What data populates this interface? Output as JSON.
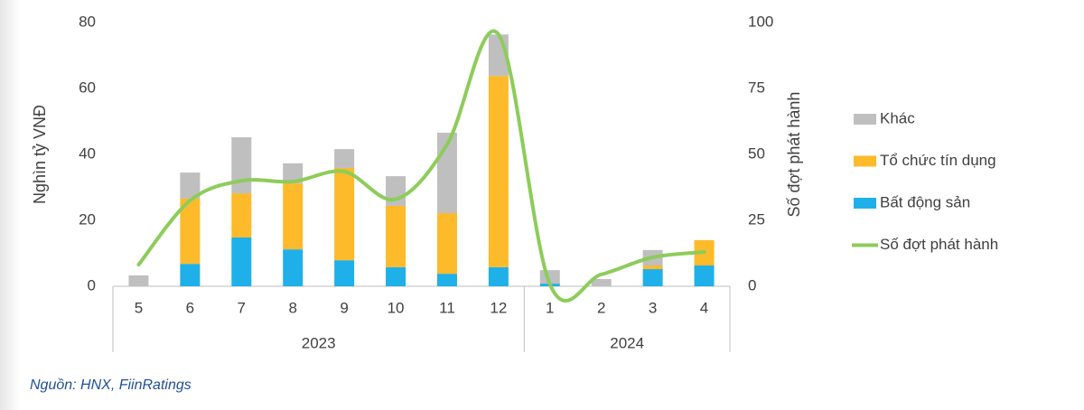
{
  "chart_data": {
    "type": "bar-line",
    "groups": [
      {
        "name": "2023",
        "categories": [
          "5",
          "6",
          "7",
          "8",
          "9",
          "10",
          "11",
          "12"
        ]
      },
      {
        "name": "2024",
        "categories": [
          "1",
          "2",
          "3",
          "4"
        ]
      }
    ],
    "series": [
      {
        "name": "Bất động sản",
        "type": "bar",
        "color": "#1fb0ea",
        "values": [
          0,
          6.8,
          14.8,
          11.2,
          7.9,
          5.8,
          3.8,
          5.8,
          0.8,
          0,
          5.2,
          6.3
        ]
      },
      {
        "name": "Tổ chức tín dụng",
        "type": "bar",
        "color": "#fdba2a",
        "values": [
          0,
          19.8,
          13.4,
          20,
          28,
          18.6,
          18.4,
          58,
          0,
          0,
          1.1,
          7.7
        ]
      },
      {
        "name": "Khác",
        "type": "bar",
        "color": "#bfbfbf",
        "values": [
          3.3,
          7.9,
          17,
          6.1,
          5.7,
          9,
          24.4,
          12.6,
          4.1,
          2.2,
          4.7,
          0
        ]
      },
      {
        "name": "Số đợt phát hành",
        "type": "line",
        "axis": "y2",
        "color": "#8dcc5a",
        "values": [
          8.2,
          32.5,
          40,
          39.7,
          43.5,
          33,
          53.8,
          95.5,
          0.7,
          4.5,
          11,
          13
        ]
      }
    ],
    "y_label": "Nghìn tỷ VNĐ",
    "y2_label": "Số đợt phát hành",
    "ylim": [
      0,
      80
    ],
    "yticks": [
      0,
      20,
      40,
      60,
      80
    ],
    "y2lim": [
      0,
      100
    ],
    "y2ticks": [
      0,
      25,
      50,
      75,
      100
    ],
    "grid": false,
    "legend": "right",
    "source": "Nguồn: HNX, FiinRatings"
  }
}
